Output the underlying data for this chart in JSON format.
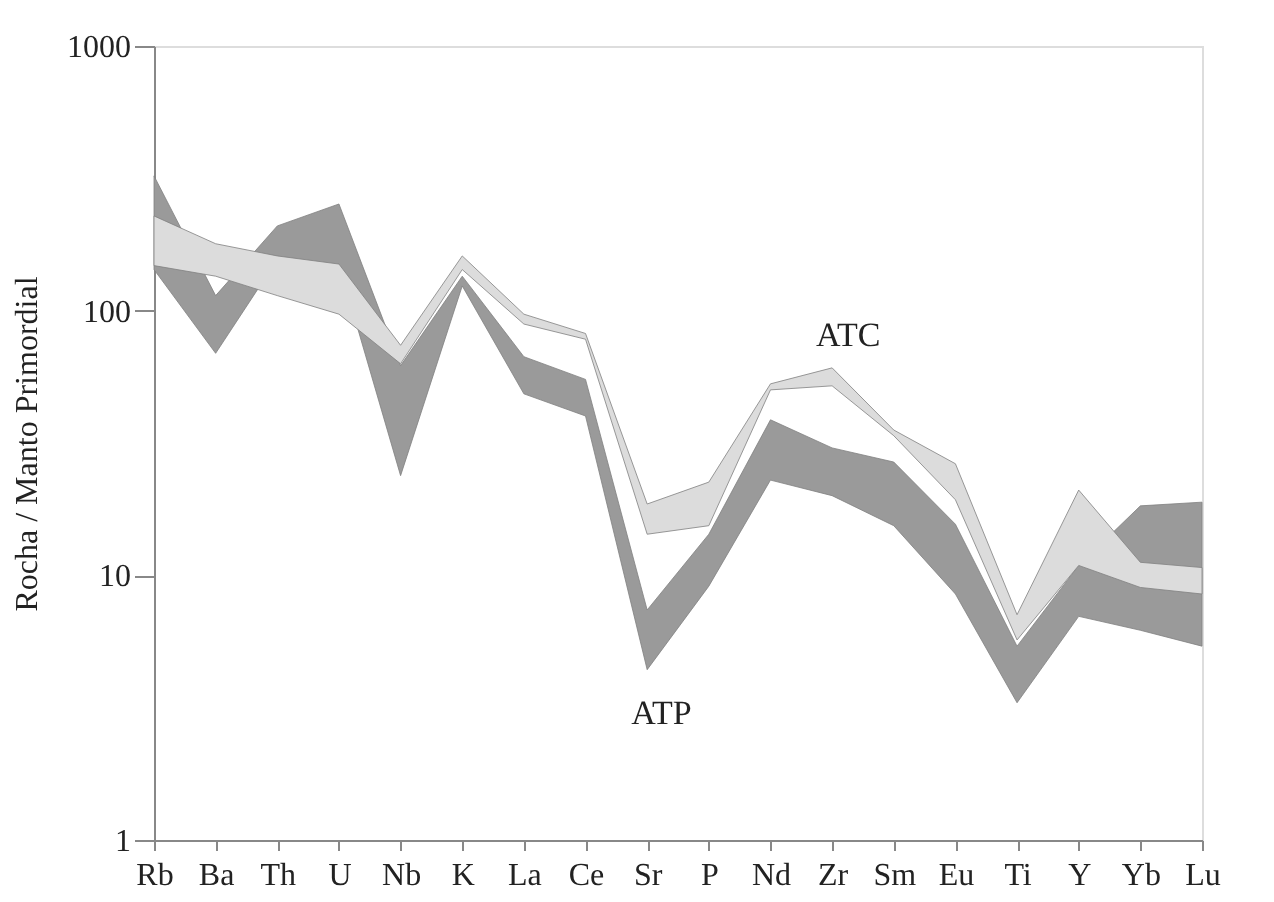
{
  "chart_data": {
    "type": "area",
    "ylabel": "Rocha / Manto Primordial",
    "log": true,
    "ylim": [
      1,
      1000
    ],
    "yticks": [
      1,
      10,
      100,
      1000
    ],
    "grid": false,
    "legend": false,
    "categories": [
      "Rb",
      "Ba",
      "Th",
      "U",
      "Nb",
      "K",
      "La",
      "Ce",
      "Sr",
      "P",
      "Nd",
      "Zr",
      "Sm",
      "Eu",
      "Ti",
      "Y",
      "Yb",
      "Lu"
    ],
    "series": [
      {
        "color": "#9a9a9a",
        "values": [
          null,
          null,
          null,
          null,
          null,
          null,
          null,
          null,
          null,
          null,
          null,
          null,
          null,
          null,
          null,
          null,
          null,
          null
        ],
        "upper": [
          323,
          114,
          209,
          253,
          62,
          135,
          67,
          55,
          7.4,
          14.3,
          38.7,
          30.3,
          26.8,
          15.6,
          5.4,
          10.9,
          18.3,
          18.9
        ],
        "lower": [
          143,
          69,
          156,
          150,
          23.8,
          124,
          48.5,
          40,
          4.4,
          9.1,
          22.9,
          20,
          15.4,
          8.5,
          3.3,
          7.0,
          6.2,
          5.4
        ]
      },
      {
        "color": "#dcdcdc",
        "values": [
          null,
          null,
          null,
          null,
          null,
          null,
          null,
          null,
          null,
          null,
          null,
          null,
          null,
          null,
          null,
          null,
          null,
          null
        ],
        "upper": [
          228,
          179,
          161,
          150,
          74,
          161,
          97,
          82,
          18.6,
          22.5,
          52.9,
          60.8,
          35.4,
          26.4,
          7.1,
          21,
          11.2,
          10.7
        ],
        "lower": [
          148,
          135,
          114,
          97,
          63,
          143,
          89,
          78,
          14.3,
          15.4,
          50.2,
          52,
          33.7,
          19.3,
          5.7,
          10.9,
          9.0,
          8.5
        ]
      }
    ],
    "annotations": [
      "ATP",
      "ATC"
    ]
  }
}
